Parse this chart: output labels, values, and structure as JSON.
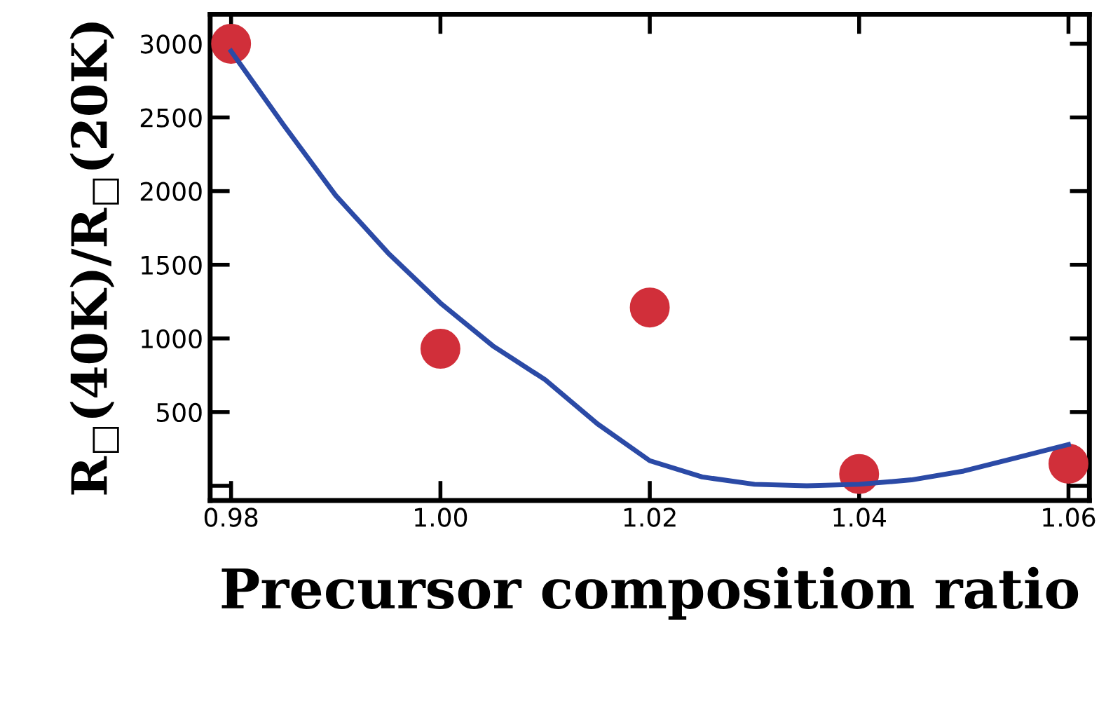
{
  "chart_data": {
    "type": "scatter",
    "xlabel": "Precursor composition ratio",
    "ylabel": "R$_{□}$(40K)/R$_{□}$(20K)",
    "series": [
      {
        "color": "#d12f3a",
        "marker": "circle",
        "x": [
          0.98,
          1.0,
          1.02,
          1.04,
          1.06
        ],
        "values": [
          3000,
          930,
          1210,
          80,
          150
        ]
      },
      {
        "type": "line",
        "color": "#2b4aa6",
        "marker": "none",
        "line_style": "solid",
        "x": [
          0.98,
          0.985,
          0.99,
          0.995,
          1.0,
          1.005,
          1.01,
          1.015,
          1.02,
          1.025,
          1.03,
          1.035,
          1.04,
          1.045,
          1.05,
          1.055,
          1.06
        ],
        "values": [
          2950,
          2450,
          1970,
          1580,
          1240,
          950,
          720,
          420,
          170,
          60,
          10,
          0,
          10,
          40,
          100,
          190,
          280
        ]
      }
    ],
    "xlim": [
      0.978,
      1.062
    ],
    "ylim": [
      -100,
      3200
    ],
    "xticks": [
      {
        "value": 0.98,
        "label": "0.98"
      },
      {
        "value": 1.0,
        "label": "1.00"
      },
      {
        "value": 1.02,
        "label": "1.02"
      },
      {
        "value": 1.04,
        "label": "1.04"
      },
      {
        "value": 1.06,
        "label": "1.06"
      }
    ],
    "yticks": [
      {
        "value": 0,
        "label": null
      },
      500,
      1000,
      1500,
      2000,
      2500,
      3000
    ],
    "grid": false,
    "legend": false
  }
}
